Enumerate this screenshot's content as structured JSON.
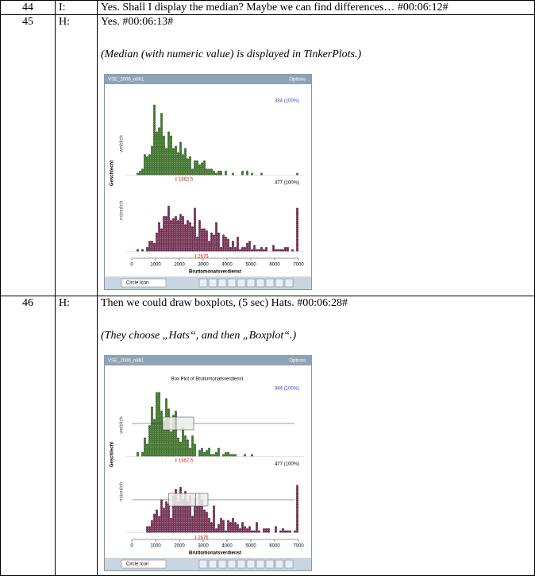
{
  "table": {
    "rows": [
      {
        "number": "44",
        "speaker": "I:",
        "text": "Yes. Shall I display the median? Maybe we can find differences… #00:06:12#"
      },
      {
        "number": "45",
        "speaker": "H:",
        "text": "Yes. #00:06:13#",
        "note": "(Median (with numeric value) is displayed in TinkerPlots.)",
        "screenshot": {
          "window_title": "VSE_2006_n861",
          "options": "Options",
          "count_top": "384 (100%)",
          "count_bottom": "477 (100%)",
          "y_axis_label": "Geschlecht",
          "groups": [
            "weiblich",
            "männlich"
          ],
          "medians": [
            "1862.5",
            "2676"
          ],
          "xticks": [
            "0",
            "1000",
            "2000",
            "3000",
            "4000",
            "5000",
            "6000",
            "7000"
          ],
          "x_axis_label": "Bruttomonatsverdienst",
          "icon_label": "Circle Icon"
        }
      },
      {
        "number": "46",
        "speaker": "H:",
        "text": "Then we could draw boxplots, (5 sec) Hats. #00:06:28#",
        "note": "(They choose „Hats“, and then „Boxplot“.)",
        "screenshot": {
          "window_title": "VSE_2006_n861",
          "options": "Options",
          "plot_title": "Box Plot of Bruttomonatsverdienst",
          "count_top": "384 (100%)",
          "count_bottom": "477 (100%)",
          "y_axis_label": "Geschlecht",
          "groups": [
            "weiblich",
            "männlich"
          ],
          "medians": [
            "1862.5",
            "2676"
          ],
          "xticks": [
            "0",
            "1000",
            "2000",
            "3000",
            "4000",
            "5000",
            "6000",
            "7000"
          ],
          "x_axis_label": "Bruttomonatsverdienst",
          "icon_label": "Circle Icon"
        }
      }
    ]
  }
}
